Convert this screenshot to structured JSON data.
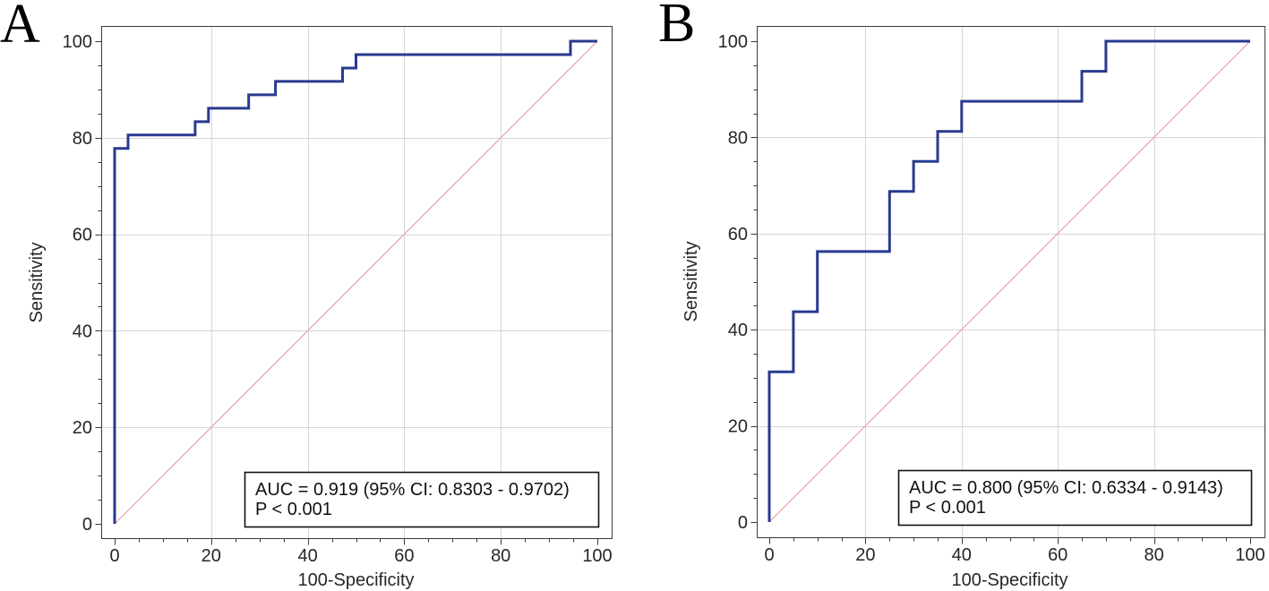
{
  "colors": {
    "roc_curve": "#2a3a8f",
    "reference_line": "#e5a3a3",
    "grid": "#d6d6d6",
    "frame": "#3a3a3a"
  },
  "chart_data": [
    {
      "type": "line",
      "title": "A",
      "xlabel": "100-Specificity",
      "ylabel": "Sensitivity",
      "xlim": [
        0,
        100
      ],
      "ylim": [
        0,
        100
      ],
      "xticks": [
        0,
        20,
        40,
        60,
        80,
        100
      ],
      "yticks": [
        0,
        20,
        40,
        60,
        80,
        100
      ],
      "minor_tick_interval": 5,
      "grid": true,
      "roc_curve": {
        "x": [
          0,
          0,
          2.78,
          2.78,
          16.67,
          16.67,
          19.44,
          19.44,
          27.78,
          27.78,
          33.33,
          33.33,
          47.22,
          47.22,
          50,
          50,
          94.44,
          94.44,
          100
        ],
        "y": [
          0,
          77.78,
          77.78,
          80.56,
          80.56,
          83.33,
          83.33,
          86.11,
          86.11,
          88.89,
          88.89,
          91.67,
          91.67,
          94.44,
          94.44,
          97.22,
          97.22,
          100,
          100
        ]
      },
      "reference_line": {
        "x": [
          0,
          100
        ],
        "y": [
          0,
          100
        ]
      },
      "annotation": [
        "AUC = 0.919 (95% CI: 0.8303 - 0.9702)",
        "P < 0.001"
      ]
    },
    {
      "type": "line",
      "title": "B",
      "xlabel": "100-Specificity",
      "ylabel": "Sensitivity",
      "xlim": [
        0,
        100
      ],
      "ylim": [
        0,
        100
      ],
      "xticks": [
        0,
        20,
        40,
        60,
        80,
        100
      ],
      "yticks": [
        0,
        20,
        40,
        60,
        80,
        100
      ],
      "minor_tick_interval": 5,
      "grid": true,
      "roc_curve": {
        "x": [
          0,
          0,
          5,
          5,
          10,
          10,
          25,
          25,
          30,
          30,
          35,
          35,
          40,
          40,
          65,
          65,
          70,
          70,
          100
        ],
        "y": [
          0,
          31.25,
          31.25,
          43.75,
          43.75,
          56.25,
          56.25,
          68.75,
          68.75,
          75,
          75,
          81.25,
          81.25,
          87.5,
          87.5,
          93.75,
          93.75,
          100,
          100
        ]
      },
      "reference_line": {
        "x": [
          0,
          100
        ],
        "y": [
          0,
          100
        ]
      },
      "annotation": [
        "AUC = 0.800 (95% CI: 0.6334 - 0.9143)",
        "P < 0.001"
      ]
    }
  ]
}
